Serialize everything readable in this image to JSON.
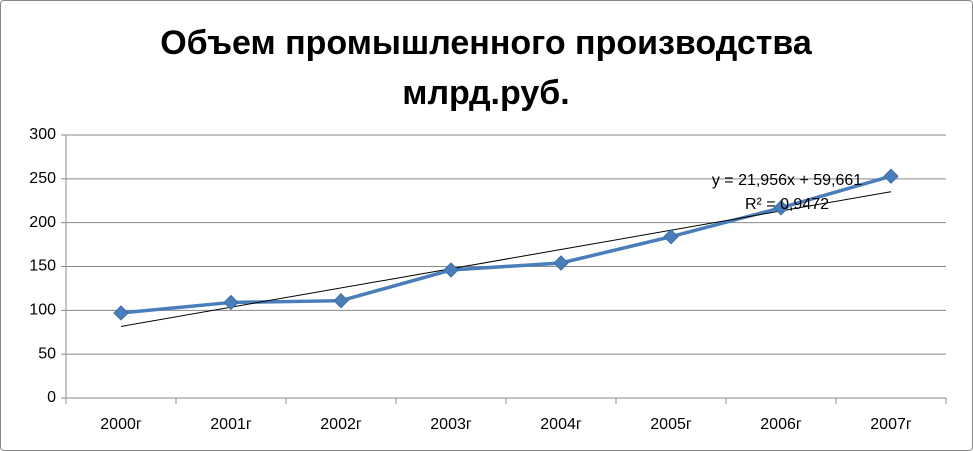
{
  "chart_data": {
    "type": "line",
    "title": "Объем промышленного производства млрд.руб.",
    "categories": [
      "2000г",
      "2001г",
      "2002г",
      "2003г",
      "2004г",
      "2005г",
      "2006г",
      "2007г"
    ],
    "values": [
      97,
      109,
      111,
      146,
      154,
      184,
      217,
      253
    ],
    "color": "#4a7ebb",
    "ylim": [
      0,
      300
    ],
    "yticks": [
      0,
      50,
      100,
      150,
      200,
      250,
      300
    ],
    "grid": true,
    "trendline": {
      "slope": 21.956,
      "intercept": 59.661,
      "label": "y = 21,956x + 59,661",
      "r2_label": "R² = 0,9472"
    }
  }
}
